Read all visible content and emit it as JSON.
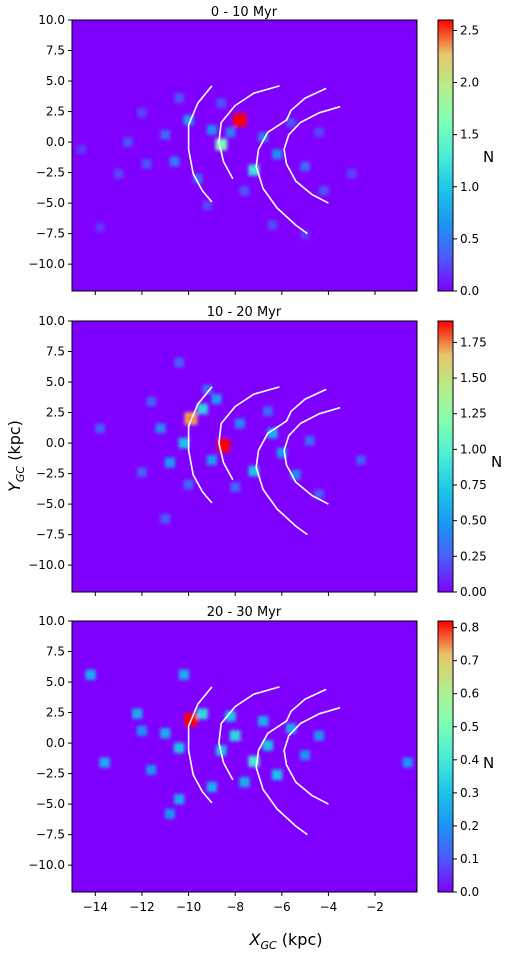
{
  "figure": {
    "xlabel_main": "X",
    "xlabel_sub": "GC",
    "xlabel_unit": " (kpc)",
    "ylabel_main": "Y",
    "ylabel_sub": "GC",
    "ylabel_unit": " (kpc)",
    "colorbar_label": "N",
    "background_color": "#8000ff",
    "arm_color": "#ffffff"
  },
  "chart_data": [
    {
      "type": "heatmap",
      "title": "0 - 10 Myr",
      "xlim": [
        -15,
        -0.2
      ],
      "ylim": [
        -12.2,
        10
      ],
      "xticks": [
        -14,
        -12,
        -10,
        -8,
        -6,
        -4,
        -2
      ],
      "yticks": [
        10.0,
        7.5,
        5.0,
        2.5,
        0.0,
        -2.5,
        -5.0,
        -7.5,
        -10.0
      ],
      "ytick_labels": [
        "10.0",
        "7.5",
        "5.0",
        "2.5",
        "0.0",
        "−2.5",
        "−5.0",
        "−7.5",
        "−10.0"
      ],
      "show_xtick_labels": false,
      "colorbar": {
        "min": 0.0,
        "max": 2.6,
        "ticks": [
          "0.0",
          "0.5",
          "1.0",
          "1.5",
          "2.0",
          "2.5"
        ],
        "tick_values": [
          0.0,
          0.5,
          1.0,
          1.5,
          2.0,
          2.5
        ],
        "label": "N"
      },
      "hotspots": [
        {
          "x": -7.8,
          "y": 1.8,
          "value": 2.6
        },
        {
          "x": -8.6,
          "y": -0.2,
          "value": 1.6
        },
        {
          "x": -7.2,
          "y": -2.3,
          "value": 1.2
        },
        {
          "x": -10.0,
          "y": 1.8,
          "value": 0.7
        },
        {
          "x": -6.2,
          "y": -1.0,
          "value": 0.6
        },
        {
          "x": -9.0,
          "y": 1.0,
          "value": 0.6
        },
        {
          "x": -10.6,
          "y": -1.6,
          "value": 0.5
        },
        {
          "x": -11.0,
          "y": 0.6,
          "value": 0.4
        },
        {
          "x": -8.2,
          "y": 0.8,
          "value": 0.5
        },
        {
          "x": -6.8,
          "y": 0.4,
          "value": 0.5
        },
        {
          "x": -9.6,
          "y": -3.0,
          "value": 0.4
        },
        {
          "x": -5.0,
          "y": -2.0,
          "value": 0.4
        },
        {
          "x": -11.8,
          "y": -1.8,
          "value": 0.3
        },
        {
          "x": -12.6,
          "y": 0.0,
          "value": 0.3
        },
        {
          "x": -7.6,
          "y": -4.0,
          "value": 0.3
        },
        {
          "x": -5.6,
          "y": 1.6,
          "value": 0.3
        },
        {
          "x": -4.2,
          "y": -4.0,
          "value": 0.3
        },
        {
          "x": -13.0,
          "y": -2.6,
          "value": 0.25
        },
        {
          "x": -10.4,
          "y": 3.6,
          "value": 0.3
        },
        {
          "x": -12.0,
          "y": 2.4,
          "value": 0.25
        },
        {
          "x": -4.4,
          "y": 0.8,
          "value": 0.25
        },
        {
          "x": -6.4,
          "y": -6.8,
          "value": 0.25
        },
        {
          "x": -9.2,
          "y": -5.2,
          "value": 0.25
        },
        {
          "x": -3.0,
          "y": -2.6,
          "value": 0.25
        },
        {
          "x": -8.6,
          "y": 3.2,
          "value": 0.3
        },
        {
          "x": -13.8,
          "y": -7.0,
          "value": 0.2
        },
        {
          "x": -14.6,
          "y": -0.6,
          "value": 0.2
        },
        {
          "x": -5.0,
          "y": -7.6,
          "value": 0.2
        }
      ]
    },
    {
      "type": "heatmap",
      "title": "10 - 20 Myr",
      "xlim": [
        -15,
        -0.2
      ],
      "ylim": [
        -12.2,
        10
      ],
      "xticks": [
        -14,
        -12,
        -10,
        -8,
        -6,
        -4,
        -2
      ],
      "yticks": [
        10.0,
        7.5,
        5.0,
        2.5,
        0.0,
        -2.5,
        -5.0,
        -7.5,
        -10.0
      ],
      "ytick_labels": [
        "10.0",
        "7.5",
        "5.0",
        "2.5",
        "0.0",
        "−2.5",
        "−5.0",
        "−7.5",
        "−10.0"
      ],
      "show_xtick_labels": false,
      "colorbar": {
        "min": 0.0,
        "max": 1.9,
        "ticks": [
          "0.00",
          "0.25",
          "0.50",
          "0.75",
          "1.00",
          "1.25",
          "1.50",
          "1.75"
        ],
        "tick_values": [
          0.0,
          0.25,
          0.5,
          0.75,
          1.0,
          1.25,
          1.5,
          1.75
        ],
        "label": "N"
      },
      "hotspots": [
        {
          "x": -9.9,
          "y": 2.0,
          "value": 1.7
        },
        {
          "x": -8.5,
          "y": -0.2,
          "value": 1.9
        },
        {
          "x": -9.4,
          "y": 2.8,
          "value": 0.8
        },
        {
          "x": -10.2,
          "y": 0.0,
          "value": 0.7
        },
        {
          "x": -7.2,
          "y": -2.3,
          "value": 0.7
        },
        {
          "x": -6.4,
          "y": 0.8,
          "value": 0.6
        },
        {
          "x": -8.8,
          "y": 3.6,
          "value": 0.5
        },
        {
          "x": -10.8,
          "y": -1.6,
          "value": 0.5
        },
        {
          "x": -9.0,
          "y": -1.4,
          "value": 0.5
        },
        {
          "x": -6.0,
          "y": -0.8,
          "value": 0.5
        },
        {
          "x": -11.2,
          "y": 1.2,
          "value": 0.4
        },
        {
          "x": -7.8,
          "y": 1.6,
          "value": 0.4
        },
        {
          "x": -5.4,
          "y": -2.6,
          "value": 0.4
        },
        {
          "x": -8.0,
          "y": -3.6,
          "value": 0.3
        },
        {
          "x": -10.0,
          "y": -3.4,
          "value": 0.3
        },
        {
          "x": -6.6,
          "y": 2.6,
          "value": 0.3
        },
        {
          "x": -10.4,
          "y": 6.6,
          "value": 0.25
        },
        {
          "x": -13.8,
          "y": 1.2,
          "value": 0.25
        },
        {
          "x": -11.0,
          "y": -6.2,
          "value": 0.25
        },
        {
          "x": -2.6,
          "y": -1.4,
          "value": 0.25
        },
        {
          "x": -4.8,
          "y": 0.2,
          "value": 0.3
        },
        {
          "x": -4.4,
          "y": -4.2,
          "value": 0.25
        },
        {
          "x": -12.0,
          "y": -2.4,
          "value": 0.25
        },
        {
          "x": -9.2,
          "y": 4.4,
          "value": 0.3
        },
        {
          "x": -11.6,
          "y": 3.4,
          "value": 0.25
        }
      ]
    },
    {
      "type": "heatmap",
      "title": "20 - 30 Myr",
      "xlim": [
        -15,
        -0.2
      ],
      "ylim": [
        -12.2,
        10
      ],
      "xticks": [
        -14,
        -12,
        -10,
        -8,
        -6,
        -4,
        -2
      ],
      "yticks": [
        10.0,
        7.5,
        5.0,
        2.5,
        0.0,
        -2.5,
        -5.0,
        -7.5,
        -10.0
      ],
      "ytick_labels": [
        "10.0",
        "7.5",
        "5.0",
        "2.5",
        "0.0",
        "−2.5",
        "−5.0",
        "−7.5",
        "−10.0"
      ],
      "show_xtick_labels": true,
      "xtick_labels": [
        "−14",
        "−12",
        "−10",
        "−8",
        "−6",
        "−4",
        "−2"
      ],
      "colorbar": {
        "min": 0.0,
        "max": 0.82,
        "ticks": [
          "0.0",
          "0.1",
          "0.2",
          "0.3",
          "0.4",
          "0.5",
          "0.6",
          "0.7",
          "0.8"
        ],
        "tick_values": [
          0.0,
          0.1,
          0.2,
          0.3,
          0.4,
          0.5,
          0.6,
          0.7,
          0.8
        ],
        "label": "N"
      },
      "hotspots": [
        {
          "x": -9.9,
          "y": 1.9,
          "value": 0.82
        },
        {
          "x": -9.4,
          "y": 2.4,
          "value": 0.35
        },
        {
          "x": -7.2,
          "y": -1.5,
          "value": 0.4
        },
        {
          "x": -8.0,
          "y": 0.6,
          "value": 0.35
        },
        {
          "x": -8.6,
          "y": -0.6,
          "value": 0.3
        },
        {
          "x": -6.6,
          "y": -0.2,
          "value": 0.3
        },
        {
          "x": -10.4,
          "y": -0.4,
          "value": 0.3
        },
        {
          "x": -6.2,
          "y": -2.6,
          "value": 0.3
        },
        {
          "x": -8.2,
          "y": 2.2,
          "value": 0.3
        },
        {
          "x": -5.6,
          "y": 1.2,
          "value": 0.25
        },
        {
          "x": -11.0,
          "y": 0.8,
          "value": 0.25
        },
        {
          "x": -12.2,
          "y": 2.4,
          "value": 0.25
        },
        {
          "x": -12.0,
          "y": 1.0,
          "value": 0.2
        },
        {
          "x": -13.6,
          "y": -1.6,
          "value": 0.25
        },
        {
          "x": -14.2,
          "y": 5.6,
          "value": 0.25
        },
        {
          "x": -10.2,
          "y": 5.6,
          "value": 0.25
        },
        {
          "x": -10.4,
          "y": -4.6,
          "value": 0.25
        },
        {
          "x": -10.8,
          "y": -5.8,
          "value": 0.2
        },
        {
          "x": -9.0,
          "y": -3.6,
          "value": 0.25
        },
        {
          "x": -7.6,
          "y": -3.2,
          "value": 0.25
        },
        {
          "x": -5.0,
          "y": -1.0,
          "value": 0.2
        },
        {
          "x": -4.4,
          "y": 0.6,
          "value": 0.2
        },
        {
          "x": -0.6,
          "y": -1.6,
          "value": 0.2
        },
        {
          "x": -11.6,
          "y": -2.2,
          "value": 0.2
        },
        {
          "x": -6.8,
          "y": 1.8,
          "value": 0.25
        }
      ]
    }
  ]
}
